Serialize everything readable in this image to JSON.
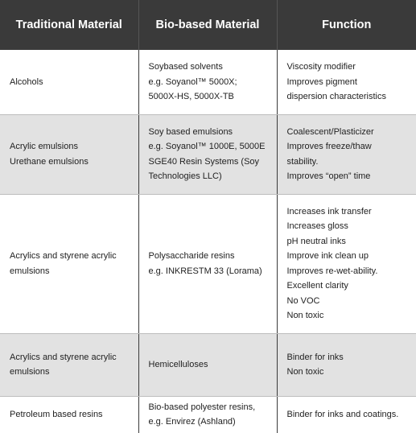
{
  "header": {
    "col1": "Traditional Material",
    "col2": "Bio-based Material",
    "col3": "Function"
  },
  "rows": [
    {
      "traditional": [
        "Alcohols"
      ],
      "bio": [
        "Soybased solvents",
        "e.g. Soyanol™ 5000X;",
        "5000X-HS, 5000X-TB"
      ],
      "function": [
        "Viscosity modifier",
        "Improves pigment",
        "dispersion characteristics"
      ]
    },
    {
      "traditional": [
        "Acrylic emulsions",
        "Urethane emulsions"
      ],
      "bio": [
        "Soy based emulsions",
        "e.g. Soyanol™  1000E, 5000E",
        "SGE40 Resin Systems (Soy",
        "Technologies LLC)"
      ],
      "function": [
        "Coalescent/Plasticizer",
        "Improves freeze/thaw",
        "stability.",
        "Improves “open” time"
      ]
    },
    {
      "traditional": [
        "Acrylics and styrene acrylic",
        "emulsions"
      ],
      "bio": [
        "Polysaccharide resins",
        "e.g. INKRESTM 33 (Lorama)"
      ],
      "function": [
        "Increases ink transfer",
        "Increases gloss",
        "pH neutral inks",
        "Improve ink clean up",
        "Improves re-wet-ability.",
        "Excellent clarity",
        "No VOC",
        "Non toxic"
      ]
    },
    {
      "traditional": [
        "Acrylics and styrene acrylic",
        "emulsions"
      ],
      "bio": [
        "Hemicelluloses"
      ],
      "function": [
        "Binder for inks",
        "Non toxic"
      ]
    },
    {
      "traditional": [
        "Petroleum based resins"
      ],
      "bio": [
        "Bio-based polyester resins,",
        "e.g. Envirez (Ashland)"
      ],
      "function": [
        "Binder for inks and coatings."
      ]
    }
  ]
}
